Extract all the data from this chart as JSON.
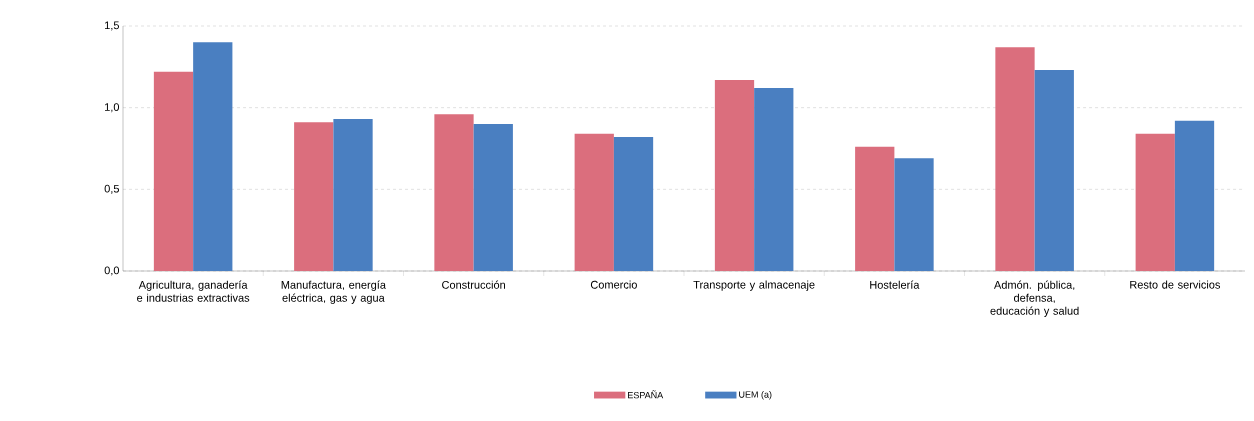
{
  "chart_data": {
    "type": "bar",
    "categories": [
      "Agricultura, ganadería e industrias extractivas",
      "Manufactura, energía eléctrica, gas y agua",
      "Construcción",
      "Comercio",
      "Transporte y almacenaje",
      "Hostelería",
      "Admón. pública, defensa, educación y salud",
      "Resto de servicios"
    ],
    "series": [
      {
        "name": "ESPAÑA",
        "color": "#db6e7d",
        "values": [
          1.22,
          0.91,
          0.96,
          0.84,
          1.17,
          0.76,
          1.37,
          0.84
        ]
      },
      {
        "name": "UEM (a)",
        "color": "#4a7fc1",
        "values": [
          1.4,
          0.93,
          0.9,
          0.82,
          1.12,
          0.69,
          1.23,
          0.92
        ]
      }
    ],
    "ylim": [
      0,
      1.5
    ],
    "yticks": [
      {
        "value": 0,
        "label": "0,0"
      },
      {
        "value": 0.5,
        "label": "0,5"
      },
      {
        "value": 1.0,
        "label": "1,0"
      },
      {
        "value": 1.5,
        "label": "1,5"
      }
    ],
    "grid": "y",
    "legend": "bottom"
  }
}
